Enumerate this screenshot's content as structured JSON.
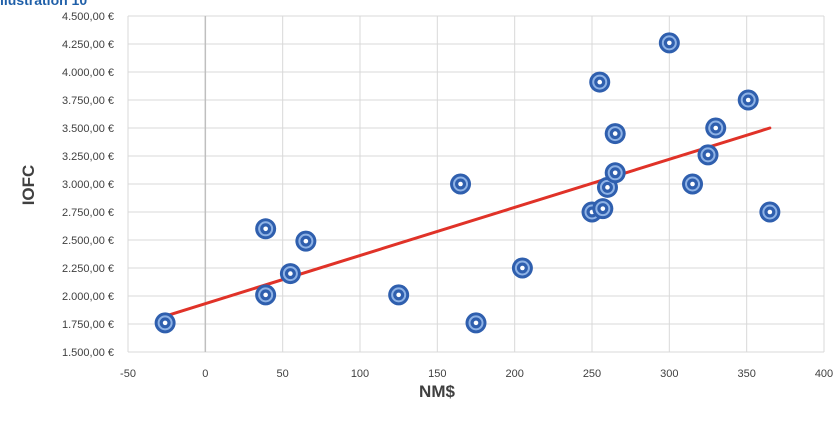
{
  "caption": "llustration 10",
  "chart_data": {
    "type": "scatter",
    "title": "",
    "xlabel": "NM$",
    "ylabel": "IOFC",
    "xlim": [
      -50,
      400
    ],
    "ylim": [
      1500,
      4500
    ],
    "x_ticks": [
      "-50",
      "0",
      "50",
      "100",
      "150",
      "200",
      "250",
      "300",
      "350",
      "400"
    ],
    "y_ticks": [
      "1.500,00 €",
      "1.750,00 €",
      "2.000,00 €",
      "2.250,00 €",
      "2.500,00 €",
      "2.750,00 €",
      "3.000,00 €",
      "3.250,00 €",
      "3.500,00 €",
      "3.750,00 €",
      "4.000,00 €",
      "4.250,00 €",
      "4.500,00 €"
    ],
    "grid": true,
    "series": [
      {
        "points": [
          {
            "x": -26,
            "y": 1760
          },
          {
            "x": 39,
            "y": 2010
          },
          {
            "x": 39,
            "y": 2600
          },
          {
            "x": 55,
            "y": 2200
          },
          {
            "x": 65,
            "y": 2490
          },
          {
            "x": 125,
            "y": 2010
          },
          {
            "x": 165,
            "y": 3000
          },
          {
            "x": 175,
            "y": 1760
          },
          {
            "x": 205,
            "y": 2250
          },
          {
            "x": 250,
            "y": 2750
          },
          {
            "x": 255,
            "y": 3910
          },
          {
            "x": 257,
            "y": 2780
          },
          {
            "x": 260,
            "y": 2970
          },
          {
            "x": 265,
            "y": 3450
          },
          {
            "x": 265,
            "y": 3100
          },
          {
            "x": 300,
            "y": 4260
          },
          {
            "x": 315,
            "y": 3000
          },
          {
            "x": 325,
            "y": 3260
          },
          {
            "x": 330,
            "y": 3500
          },
          {
            "x": 351,
            "y": 3750
          },
          {
            "x": 365,
            "y": 2750
          }
        ]
      }
    ],
    "trendline": {
      "type": "linear",
      "from": {
        "x": -26,
        "y": 1820
      },
      "to": {
        "x": 365,
        "y": 3500
      }
    },
    "colors": {
      "marker": "#2f5fae",
      "trendline": "#e03228",
      "grid": "#d9d9d9",
      "zero_line": "#bfbfbf"
    }
  }
}
